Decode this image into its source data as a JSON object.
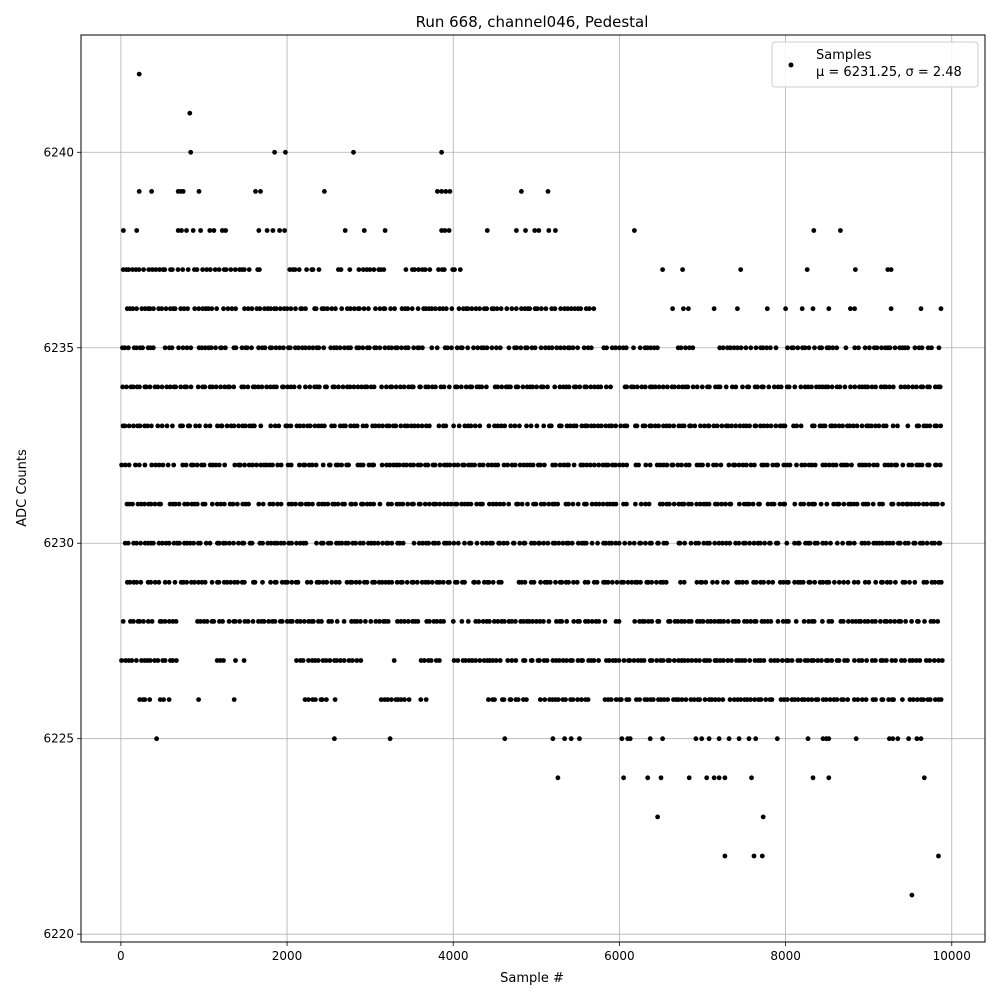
{
  "chart_data": {
    "type": "scatter",
    "title": "Run 668, channel046, Pedestal",
    "xlabel": "Sample #",
    "ylabel": "ADC Counts",
    "xlim": [
      -480,
      10400
    ],
    "ylim": [
      6219.8,
      6243.0
    ],
    "xticks": [
      0,
      2000,
      4000,
      6000,
      8000,
      10000
    ],
    "yticks": [
      6220,
      6225,
      6230,
      6235,
      6240
    ],
    "grid": true,
    "legend_position": "top-right",
    "marker_color": "#000000",
    "series": [
      {
        "name": "Samples",
        "stats_label": "μ = 6231.25, σ = 2.48",
        "sample_count": 10000,
        "bands": [
          {
            "y": 6226,
            "ranges": [
              [
                160,
                620
              ],
              [
                920,
                940
              ],
              [
                1320,
                1380
              ],
              [
                2200,
                2600
              ],
              [
                3100,
                3500
              ],
              [
                3600,
                3700
              ],
              [
                4000,
                4050
              ],
              [
                4400,
                4900
              ],
              [
                5000,
                5700
              ],
              [
                5800,
                9900
              ]
            ]
          },
          {
            "y": 6227,
            "ranges": [
              [
                0,
                700
              ],
              [
                1100,
                1500
              ],
              [
                2100,
                2900
              ],
              [
                3150,
                3300
              ],
              [
                3600,
                3850
              ],
              [
                4000,
                4600
              ],
              [
                4600,
                9900
              ]
            ]
          },
          {
            "y": 6228,
            "ranges": [
              [
                0,
                700
              ],
              [
                900,
                1500
              ],
              [
                1500,
                3300
              ],
              [
                3300,
                3700
              ],
              [
                3700,
                3900
              ],
              [
                4000,
                9900
              ]
            ]
          },
          {
            "y": 6229,
            "ranges": [
              [
                0,
                9900
              ]
            ]
          },
          {
            "y": 6230,
            "ranges": [
              [
                0,
                9900
              ]
            ]
          },
          {
            "y": 6231,
            "ranges": [
              [
                0,
                9900
              ]
            ]
          },
          {
            "y": 6232,
            "ranges": [
              [
                0,
                9900
              ]
            ]
          },
          {
            "y": 6233,
            "ranges": [
              [
                0,
                9900
              ]
            ]
          },
          {
            "y": 6234,
            "ranges": [
              [
                0,
                9900
              ]
            ]
          },
          {
            "y": 6235,
            "ranges": [
              [
                0,
                5700
              ],
              [
                5800,
                6500
              ],
              [
                6700,
                6900
              ],
              [
                7200,
                7900
              ],
              [
                8000,
                9900
              ]
            ]
          },
          {
            "y": 6236,
            "ranges": [
              [
                0,
                3000
              ],
              [
                3000,
                5700
              ]
            ]
          },
          {
            "y": 6237,
            "ranges": [
              [
                0,
                1700
              ],
              [
                2000,
                2400
              ],
              [
                2600,
                3200
              ],
              [
                3400,
                4100
              ]
            ]
          }
        ],
        "points": [
          [
            220,
            6242
          ],
          [
            830,
            6241
          ],
          [
            840,
            6240
          ],
          [
            1850,
            6240
          ],
          [
            1980,
            6240
          ],
          [
            2800,
            6240
          ],
          [
            3860,
            6240
          ],
          [
            220,
            6239
          ],
          [
            370,
            6239
          ],
          [
            690,
            6239
          ],
          [
            720,
            6239
          ],
          [
            750,
            6239
          ],
          [
            940,
            6239
          ],
          [
            1620,
            6239
          ],
          [
            1680,
            6239
          ],
          [
            2450,
            6239
          ],
          [
            3810,
            6239
          ],
          [
            3860,
            6239
          ],
          [
            3910,
            6239
          ],
          [
            3960,
            6239
          ],
          [
            4820,
            6239
          ],
          [
            5140,
            6239
          ],
          [
            30,
            6238
          ],
          [
            190,
            6238
          ],
          [
            690,
            6238
          ],
          [
            730,
            6238
          ],
          [
            790,
            6238
          ],
          [
            870,
            6238
          ],
          [
            960,
            6238
          ],
          [
            1070,
            6238
          ],
          [
            1120,
            6238
          ],
          [
            1220,
            6238
          ],
          [
            1260,
            6238
          ],
          [
            1660,
            6238
          ],
          [
            1760,
            6238
          ],
          [
            1830,
            6238
          ],
          [
            1910,
            6238
          ],
          [
            1970,
            6238
          ],
          [
            2700,
            6238
          ],
          [
            2930,
            6238
          ],
          [
            3180,
            6238
          ],
          [
            3860,
            6238
          ],
          [
            3900,
            6238
          ],
          [
            3950,
            6238
          ],
          [
            4410,
            6238
          ],
          [
            4760,
            6238
          ],
          [
            4870,
            6238
          ],
          [
            4980,
            6238
          ],
          [
            5030,
            6238
          ],
          [
            5150,
            6238
          ],
          [
            5230,
            6238
          ],
          [
            6180,
            6238
          ],
          [
            8340,
            6238
          ],
          [
            8660,
            6238
          ],
          [
            6520,
            6237
          ],
          [
            6760,
            6237
          ],
          [
            7460,
            6237
          ],
          [
            8260,
            6237
          ],
          [
            8840,
            6237
          ],
          [
            9230,
            6237
          ],
          [
            9270,
            6237
          ],
          [
            6640,
            6236
          ],
          [
            6770,
            6236
          ],
          [
            6830,
            6236
          ],
          [
            7140,
            6236
          ],
          [
            7420,
            6236
          ],
          [
            7780,
            6236
          ],
          [
            8000,
            6236
          ],
          [
            8200,
            6236
          ],
          [
            8330,
            6236
          ],
          [
            8520,
            6236
          ],
          [
            8780,
            6236
          ],
          [
            8830,
            6236
          ],
          [
            9270,
            6236
          ],
          [
            9630,
            6236
          ],
          [
            9870,
            6236
          ],
          [
            430,
            6225
          ],
          [
            2570,
            6225
          ],
          [
            3240,
            6225
          ],
          [
            4620,
            6225
          ],
          [
            5200,
            6225
          ],
          [
            5340,
            6225
          ],
          [
            5420,
            6225
          ],
          [
            5520,
            6225
          ],
          [
            6030,
            6225
          ],
          [
            6100,
            6225
          ],
          [
            6130,
            6225
          ],
          [
            6370,
            6225
          ],
          [
            6520,
            6225
          ],
          [
            6920,
            6225
          ],
          [
            6990,
            6225
          ],
          [
            7080,
            6225
          ],
          [
            7200,
            6225
          ],
          [
            7320,
            6225
          ],
          [
            7440,
            6225
          ],
          [
            7560,
            6225
          ],
          [
            7640,
            6225
          ],
          [
            7900,
            6225
          ],
          [
            8270,
            6225
          ],
          [
            8450,
            6225
          ],
          [
            8490,
            6225
          ],
          [
            8520,
            6225
          ],
          [
            8850,
            6225
          ],
          [
            9250,
            6225
          ],
          [
            9290,
            6225
          ],
          [
            9350,
            6225
          ],
          [
            9480,
            6225
          ],
          [
            9580,
            6225
          ],
          [
            9630,
            6225
          ],
          [
            5260,
            6224
          ],
          [
            6050,
            6224
          ],
          [
            6340,
            6224
          ],
          [
            6500,
            6224
          ],
          [
            6840,
            6224
          ],
          [
            7050,
            6224
          ],
          [
            7140,
            6224
          ],
          [
            7200,
            6224
          ],
          [
            7270,
            6224
          ],
          [
            7590,
            6224
          ],
          [
            8330,
            6224
          ],
          [
            8520,
            6224
          ],
          [
            9670,
            6224
          ],
          [
            6460,
            6223
          ],
          [
            7730,
            6223
          ],
          [
            7270,
            6222
          ],
          [
            7620,
            6222
          ],
          [
            7720,
            6222
          ],
          [
            9840,
            6222
          ],
          [
            9520,
            6221
          ]
        ]
      }
    ]
  }
}
